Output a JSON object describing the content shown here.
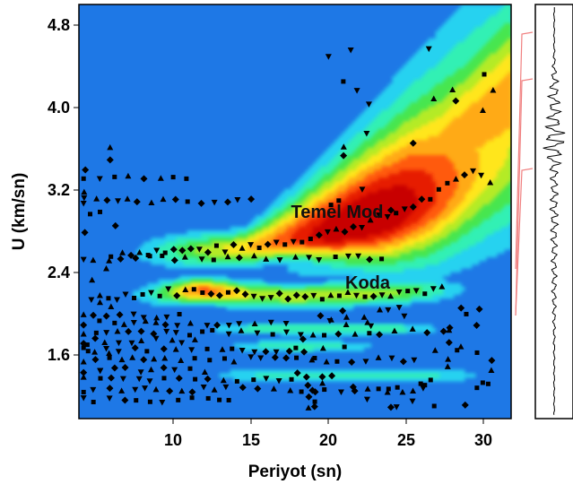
{
  "chart_data": {
    "type": "heatmap",
    "title": "",
    "xlabel": "Periyot (sn)",
    "ylabel": "U (km/sn)",
    "xlim": [
      4.2,
      32.0
    ],
    "ylim": [
      1.0,
      5.0
    ],
    "xticks": [
      10,
      15,
      20,
      25,
      30
    ],
    "yticks": [
      1.6,
      2.4,
      3.2,
      4.0,
      4.8
    ],
    "xtick_labels": [
      "10",
      "15",
      "20",
      "25",
      "30"
    ],
    "ytick_labels": [
      "1.6",
      "2.4",
      "3.2",
      "4.0",
      "4.8"
    ],
    "colorscale": [
      "#1e78e6",
      "#28d2f0",
      "#32f0b4",
      "#46e650",
      "#b4eb28",
      "#ffe61e",
      "#ffaa14",
      "#ff5a0a",
      "#e61e00",
      "#c80000"
    ],
    "annotations": [
      {
        "text": "Temel Mod",
        "x": 23.1,
        "y": 2.96
      },
      {
        "text": "Koda",
        "x": 22.4,
        "y": 2.29
      }
    ],
    "ridges": [
      {
        "name": "Temel Mod",
        "x": [
          10,
          14,
          18,
          21,
          24,
          27,
          30,
          32
        ],
        "y": [
          2.62,
          2.64,
          2.72,
          2.82,
          2.95,
          3.15,
          3.45,
          3.65
        ],
        "peak": 1.0
      },
      {
        "name": "Koda",
        "x": [
          10,
          12,
          15,
          18,
          21,
          24,
          27
        ],
        "y": [
          2.22,
          2.24,
          2.2,
          2.18,
          2.2,
          2.22,
          2.24
        ],
        "peak": 0.65
      }
    ],
    "seismogram": {
      "time_axis": "vertical",
      "series": "single trace"
    },
    "grid": false
  }
}
